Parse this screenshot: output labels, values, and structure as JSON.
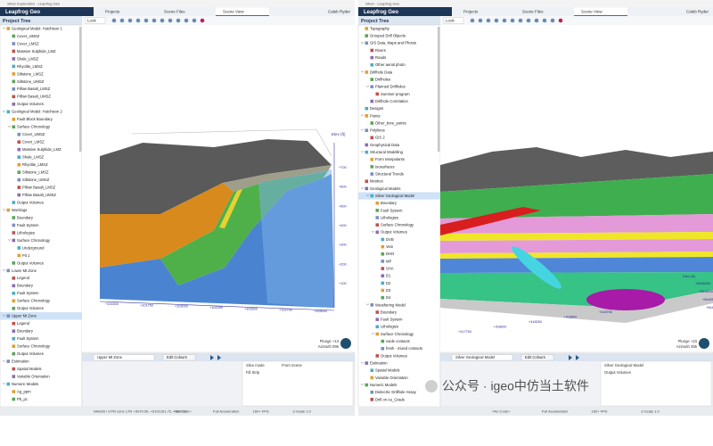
{
  "windows": [
    {
      "title": "Silver Exploration - Leapfrog Geo",
      "app": "Leapfrog Geo",
      "tabs": [
        "Projects",
        "Scene Files",
        "Scene View"
      ],
      "user": "Caleb Ryder",
      "tree_title": "Project Tree",
      "look": "Look",
      "tree": [
        {
          "label": "Geological Model: Hutchison 1",
          "children": [
            "Cover_UMSZ",
            "Cover_LMSZ",
            "Massive Sulphide_LMZ",
            "Shale_LMSZ",
            "Rhyolite_LMSZ",
            "Siltstone_LMSZ",
            "Siltstone_UMSZ",
            "Pillow Basalt_LMSZ",
            "Pillow Basalt_UMSZ",
            "Output Volumes"
          ]
        },
        {
          "label": "Geological Model: Hutchison 2",
          "children": [
            "Fault Block Boundary",
            {
              "label": "Surface Chronology",
              "children": [
                "Cover_UMSZ",
                "Cover_LMSZ",
                "Massive Sulphide_LMZ",
                "Shale_LMSZ",
                "Rhyolite_LMSZ",
                "Siltstone_LMSZ",
                "Siltstone_UMSZ",
                "Pillow Basalt_LMSZ",
                "Pillow Basalt_UMSZ"
              ]
            },
            "Output Volumes"
          ]
        },
        {
          "label": "Workings",
          "children": [
            "Boundary",
            "Fault System",
            "Lithologies",
            {
              "label": "Surface Chronology",
              "children": [
                "Underground",
                "Pit 1"
              ]
            },
            "Output Volumes"
          ]
        },
        {
          "label": "Lower Mt Zone",
          "children": [
            "Legend",
            "Boundary",
            "Fault System",
            "Surface Chronology",
            "Output Volumes"
          ]
        },
        {
          "label": "Upper Mt Zone",
          "selected": true,
          "children": [
            "Legend",
            "Boundary",
            "Fault System",
            "Surface Chronology",
            "Output Volumes"
          ]
        },
        {
          "label": "Estimation",
          "children": [
            "Spatial Models",
            "Variable Orientation"
          ]
        },
        {
          "label": "Numeric Models",
          "children": [
            "Ag_ppm",
            "Pb_pc"
          ]
        }
      ],
      "scene": {
        "axis_title": "Elev (ft)",
        "axis_labels": [
          "+700",
          "+600",
          "+500",
          "+400",
          "+300",
          "+200",
          "+100"
        ],
        "grid_labels": [
          "+101500",
          "+101750",
          "+102000",
          "+102250",
          "+102500",
          "+102750",
          "+103000"
        ],
        "plunge": "Plunge +13",
        "azimuth": "Azimuth 096"
      },
      "shapes": {
        "item": "Upper Mt Zone",
        "button": "Edit Colours",
        "properties": [
          "Slice mode",
          "From Scene",
          "Fill Strip"
        ]
      },
      "status": [
        "NAD83 / UTM zone 17N",
        "+5970.56, +5101261.72, +150.62",
        "<No Code>",
        "Full Acceleration",
        "160+ FPS",
        "Z-Scale 1.0"
      ]
    },
    {
      "title": "Silver - Leapfrog Geo",
      "app": "Leapfrog Geo",
      "tabs": [
        "Projects",
        "Scene Files",
        "Scene View"
      ],
      "user": "Caleb Ryder",
      "tree_title": "Project Tree",
      "look": "Look",
      "tree": [
        "Topography",
        "Grouped Drill Objects",
        {
          "label": "GIS Data, Maps and Photos",
          "children": [
            "Rivers",
            "Roads",
            "Other aerial photo"
          ]
        },
        {
          "label": "Drillhole Data",
          "children": [
            "Drillholes",
            {
              "label": "Planned Drillholes",
              "children": [
                "Summer program"
              ]
            },
            "Drillhole Correlation"
          ]
        },
        "Designs",
        {
          "label": "Points",
          "children": [
            "Other_bore_points"
          ]
        },
        {
          "label": "Polylines",
          "children": [
            "GIS 2"
          ]
        },
        "Geophysical Data",
        {
          "label": "Structural Modelling",
          "children": [
            "Form Interpolants",
            "Isosurfaces",
            "Structural Trends"
          ]
        },
        "Meshes",
        {
          "label": "Geological Models",
          "children": [
            {
              "label": "Silver Geological Model",
              "selected": true,
              "children": [
                "Boundary",
                "Fault System",
                "Lithologies",
                "Surface Chronology",
                {
                  "label": "Output Volumes",
                  "children": [
                    "DVB",
                    "Vein",
                    "DHO",
                    "MP",
                    "SHA",
                    "D1",
                    "D2",
                    "D3",
                    "D4"
                  ]
                }
              ]
            },
            {
              "label": "Weathering Model",
              "children": [
                "Boundary",
                "Fault System",
                "Lithologies",
                {
                  "label": "Surface Chronology",
                  "children": [
                    "oxide contacts",
                    "fresh - mixed contacts"
                  ]
                },
                "Output Volumes"
              ]
            }
          ]
        },
        {
          "label": "Estimation",
          "children": [
            "Spatial Models",
            "Variable Orientation"
          ]
        },
        {
          "label": "Numeric Models",
          "children": [
            "Dielectric Drillhole Assay",
            "Drill on Au_Grade"
          ]
        }
      ],
      "scene": {
        "axis_title": "Elev (ft)",
        "axis_labels": [
          "+5446500",
          "+5446000",
          "+5445500",
          "+5445000"
        ],
        "grid_labels": [
          "+417750",
          "+418000",
          "+418250",
          "+418500",
          "+418750"
        ],
        "plunge": "Plunge +23",
        "azimuth": "Azimuth 355"
      },
      "shapes": {
        "item": "Silver Geological Model",
        "button": "Edit Colours",
        "properties": [
          "Silver Geological Model",
          "Output Volumes"
        ]
      },
      "status": [
        "<No Code>",
        "Full Acceleration",
        "160+ FPS",
        "Z-Scale 1.0"
      ]
    }
  ],
  "watermark": "公众号 · igeo中仿当土软件"
}
